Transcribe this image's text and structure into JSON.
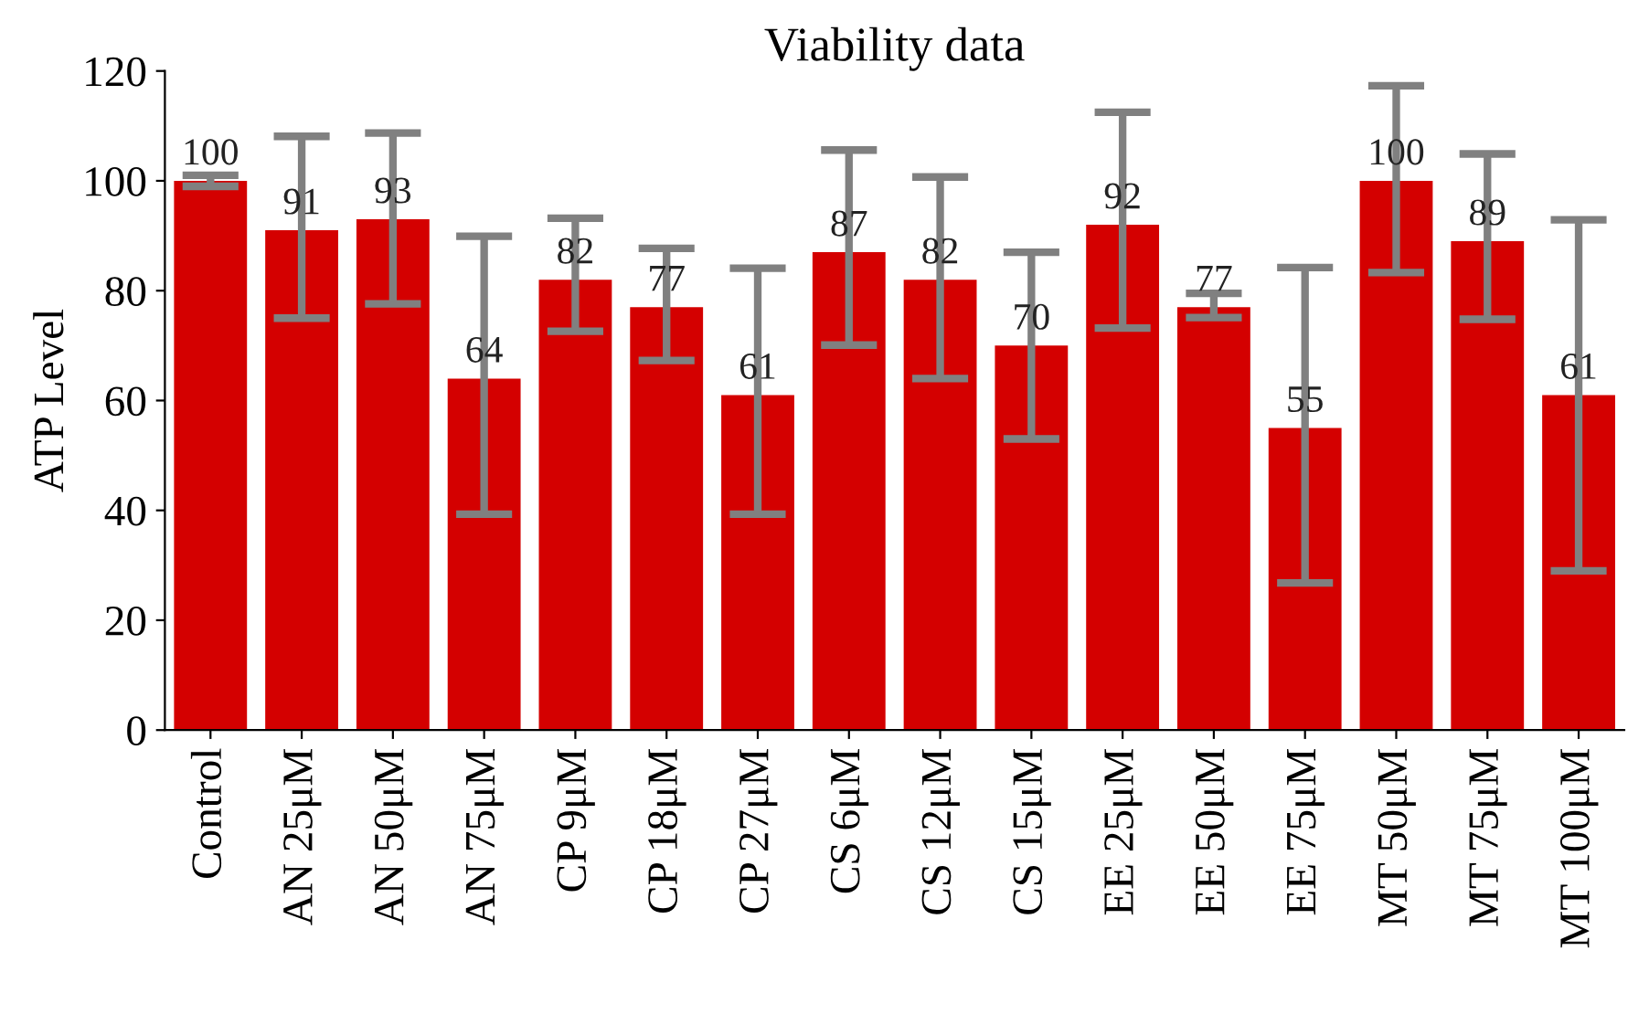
{
  "chart_data": {
    "type": "bar",
    "title": "Viability data",
    "ylabel": "ATP Level",
    "categories": [
      "Control",
      "AN 25μM",
      "AN 50μM",
      "AN 75μM",
      "CP 9μM",
      "CP 18μM",
      "CP 27μM",
      "CS 6μM",
      "CS 12μM",
      "CS 15μM",
      "EE 25μM",
      "EE 50μM",
      "EE 75μM",
      "MT 50μM",
      "MT 75μM",
      "MT 100μM"
    ],
    "values": [
      100,
      91,
      93,
      64,
      82,
      77,
      61,
      87,
      82,
      70,
      92,
      77,
      55,
      100,
      89,
      61
    ],
    "errors": [
      [
        99,
        101
      ],
      [
        75.0,
        108.1
      ],
      [
        77.6,
        108.7
      ],
      [
        39.3,
        89.9
      ],
      [
        72.6,
        93.2
      ],
      [
        67.3,
        87.7
      ],
      [
        39.3,
        84.1
      ],
      [
        70.1,
        105.6
      ],
      [
        64.0,
        100.7
      ],
      [
        53.0,
        87.0
      ],
      [
        73.2,
        112.5
      ],
      [
        75.1,
        79.5
      ],
      [
        26.8,
        84.2
      ],
      [
        83.3,
        117.3
      ],
      [
        74.8,
        104.9
      ],
      [
        29.0,
        92.9
      ]
    ],
    "data_labels": true,
    "color": "#d40000",
    "ylim": [
      0,
      120
    ],
    "yticks": [
      0,
      20,
      40,
      60,
      80,
      100,
      120
    ],
    "grid": false,
    "legend": false
  }
}
